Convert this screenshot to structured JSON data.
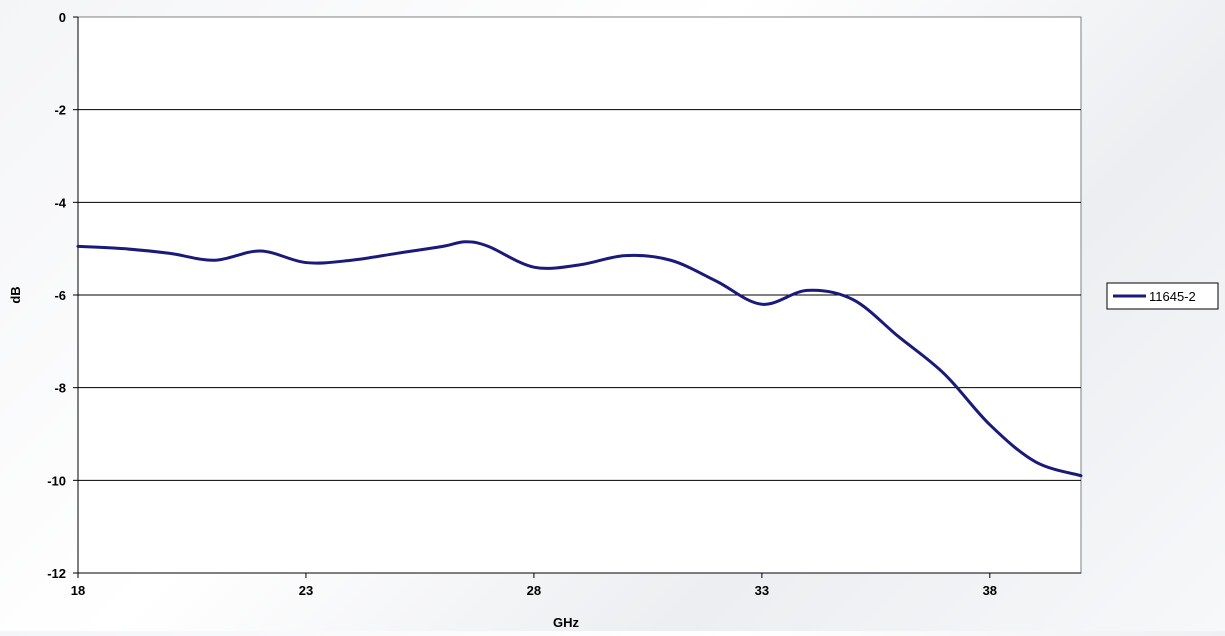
{
  "chart_data": {
    "type": "line",
    "title": "",
    "xlabel": "GHz",
    "ylabel": "dB",
    "xlim": [
      18,
      40
    ],
    "ylim": [
      -12,
      0
    ],
    "xticks": [
      18,
      23,
      28,
      33,
      38
    ],
    "xtick_labels": [
      "18",
      "23",
      "28",
      "33",
      "38"
    ],
    "yticks": [
      0,
      -2,
      -4,
      -6,
      -8,
      -10,
      -12
    ],
    "ytick_labels": [
      "0",
      "-2",
      "-4",
      "-6",
      "-8",
      "-10",
      "-12"
    ],
    "grid": {
      "horizontal": true,
      "vertical": false
    },
    "legend_position": "right",
    "series": [
      {
        "name": "11645-2",
        "color": "#1a1a7a",
        "x": [
          18,
          19,
          20,
          21,
          22,
          23,
          24,
          25,
          26,
          26.5,
          27,
          28,
          29,
          30,
          31,
          32,
          33,
          34,
          35,
          36,
          37,
          38,
          39,
          40
        ],
        "y": [
          -4.95,
          -5.0,
          -5.1,
          -5.25,
          -5.05,
          -5.3,
          -5.25,
          -5.1,
          -4.95,
          -4.85,
          -4.95,
          -5.4,
          -5.35,
          -5.15,
          -5.25,
          -5.7,
          -6.2,
          -5.9,
          -6.1,
          -6.9,
          -7.7,
          -8.8,
          -9.6,
          -9.9
        ]
      }
    ]
  }
}
